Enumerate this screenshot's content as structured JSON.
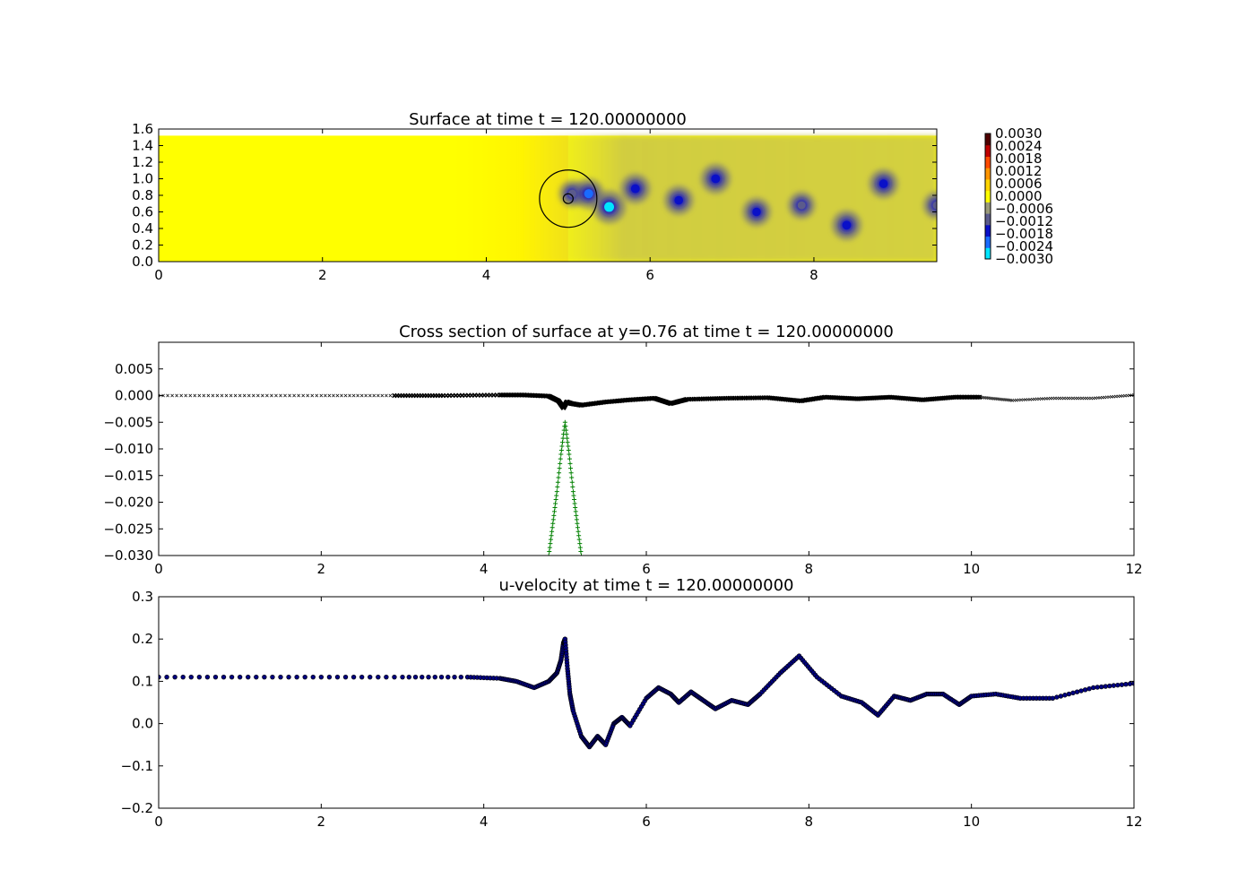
{
  "chart_data": [
    {
      "type": "heatmap",
      "title": "Surface at time t =   120.00000000",
      "xlim": [
        0,
        9.5
      ],
      "ylim": [
        0,
        1.6
      ],
      "data_ylim": [
        0,
        1.52
      ],
      "x_ticks": [
        "0",
        "2",
        "4",
        "6",
        "8"
      ],
      "y_ticks": [
        "0.0",
        "0.2",
        "0.4",
        "0.6",
        "0.8",
        "1.0",
        "1.2",
        "1.4",
        "1.6"
      ],
      "background_value": 0.0,
      "upstream_value": 0.0002,
      "wake": {
        "x_start": 4.4,
        "value": -0.0007
      },
      "cylinder": {
        "center": [
          5.0,
          0.76
        ],
        "outer_radius": 0.35,
        "inner_radius": 0.06
      },
      "vortices": [
        {
          "x": 5.05,
          "y": 0.82,
          "value": -0.0012
        },
        {
          "x": 5.25,
          "y": 0.82,
          "value": -0.0022
        },
        {
          "x": 5.5,
          "y": 0.66,
          "value": -0.003
        },
        {
          "x": 5.82,
          "y": 0.88,
          "value": -0.002
        },
        {
          "x": 6.35,
          "y": 0.74,
          "value": -0.0018
        },
        {
          "x": 6.8,
          "y": 1.0,
          "value": -0.002
        },
        {
          "x": 7.3,
          "y": 0.6,
          "value": -0.0016
        },
        {
          "x": 7.85,
          "y": 0.68,
          "value": -0.0012
        },
        {
          "x": 8.4,
          "y": 0.44,
          "value": -0.002
        },
        {
          "x": 8.85,
          "y": 0.94,
          "value": -0.0018
        },
        {
          "x": 9.5,
          "y": 0.68,
          "value": -0.0012
        }
      ],
      "colorbar": {
        "range": [
          -0.003,
          0.003
        ],
        "tick_labels": [
          "0.0030",
          "0.0024",
          "0.0018",
          "0.0012",
          "0.0006",
          "0.0000",
          "−0.0006",
          "−0.0012",
          "−0.0018",
          "−0.0024",
          "−0.0030"
        ],
        "colors": [
          "#00e5ff",
          "#1a6bff",
          "#0a10c8",
          "#5b5b8c",
          "#9a9a7a",
          "#ffff00",
          "#ffd400",
          "#ff9500",
          "#ff4a00",
          "#c00000",
          "#500000"
        ]
      }
    },
    {
      "type": "scatter",
      "title": "Cross section of surface at y=0.76 at time t =   120.00000000",
      "xlim": [
        0,
        12
      ],
      "ylim": [
        -0.03,
        0.01
      ],
      "x_ticks": [
        "0",
        "2",
        "4",
        "6",
        "8",
        "10",
        "12"
      ],
      "y_ticks": [
        "0.005",
        "0.000",
        "−0.005",
        "−0.010",
        "−0.015",
        "−0.020",
        "−0.025",
        "−0.030"
      ],
      "series": [
        {
          "marker": "x",
          "color": "#000000",
          "x": [
            0,
            1,
            2,
            2.9,
            3.5,
            4.2,
            4.5,
            4.8,
            4.92,
            4.98,
            5.02,
            5.08,
            5.2,
            5.5,
            5.8,
            6.1,
            6.3,
            6.5,
            7,
            7.5,
            7.9,
            8.2,
            8.6,
            9,
            9.4,
            9.8,
            10.1,
            10.5,
            11,
            11.5,
            12
          ],
          "y": [
            0,
            0,
            0,
            0,
            0,
            0.0001,
            0.0001,
            -0.0001,
            -0.001,
            -0.0023,
            -0.0012,
            -0.0015,
            -0.0018,
            -0.0012,
            -0.0008,
            -0.0005,
            -0.0015,
            -0.0007,
            -0.0005,
            -0.0004,
            -0.001,
            -0.0003,
            -0.0006,
            -0.0003,
            -0.0008,
            -0.0003,
            -0.0003,
            -0.0009,
            -0.0005,
            -0.0005,
            0.0001
          ]
        },
        {
          "marker": "+",
          "color": "#008000",
          "x": [
            4.8,
            4.85,
            4.9,
            4.95,
            5.0,
            5.05,
            5.1,
            5.15,
            5.2
          ],
          "y": [
            -0.03,
            -0.024,
            -0.018,
            -0.011,
            -0.005,
            -0.011,
            -0.018,
            -0.024,
            -0.03
          ]
        }
      ]
    },
    {
      "type": "scatter",
      "title": "u-velocity at time t =   120.00000000",
      "xlim": [
        0,
        12
      ],
      "ylim": [
        -0.2,
        0.3
      ],
      "x_ticks": [
        "0",
        "2",
        "4",
        "6",
        "8",
        "10",
        "12"
      ],
      "y_ticks": [
        "0.3",
        "0.2",
        "0.1",
        "0.0",
        "−0.1",
        "−0.2"
      ],
      "series": [
        {
          "marker": "o",
          "color": "#000080",
          "x": [
            0,
            1,
            2,
            3,
            3.8,
            4.2,
            4.4,
            4.62,
            4.8,
            4.9,
            4.95,
            4.98,
            5.0,
            5.03,
            5.06,
            5.1,
            5.2,
            5.3,
            5.4,
            5.5,
            5.6,
            5.7,
            5.8,
            6.0,
            6.15,
            6.3,
            6.4,
            6.55,
            6.7,
            6.85,
            7.05,
            7.25,
            7.4,
            7.65,
            7.88,
            8.1,
            8.4,
            8.65,
            8.85,
            9.05,
            9.25,
            9.45,
            9.65,
            9.85,
            10.0,
            10.3,
            10.6,
            11.0,
            11.5,
            12.0
          ],
          "y": [
            0.11,
            0.11,
            0.11,
            0.11,
            0.11,
            0.107,
            0.1,
            0.085,
            0.1,
            0.12,
            0.15,
            0.19,
            0.2,
            0.13,
            0.07,
            0.03,
            -0.03,
            -0.055,
            -0.03,
            -0.05,
            0.0,
            0.015,
            -0.005,
            0.06,
            0.085,
            0.07,
            0.05,
            0.075,
            0.055,
            0.035,
            0.055,
            0.045,
            0.07,
            0.12,
            0.16,
            0.11,
            0.065,
            0.05,
            0.02,
            0.065,
            0.055,
            0.07,
            0.07,
            0.045,
            0.065,
            0.07,
            0.06,
            0.06,
            0.085,
            0.095
          ]
        }
      ]
    }
  ]
}
